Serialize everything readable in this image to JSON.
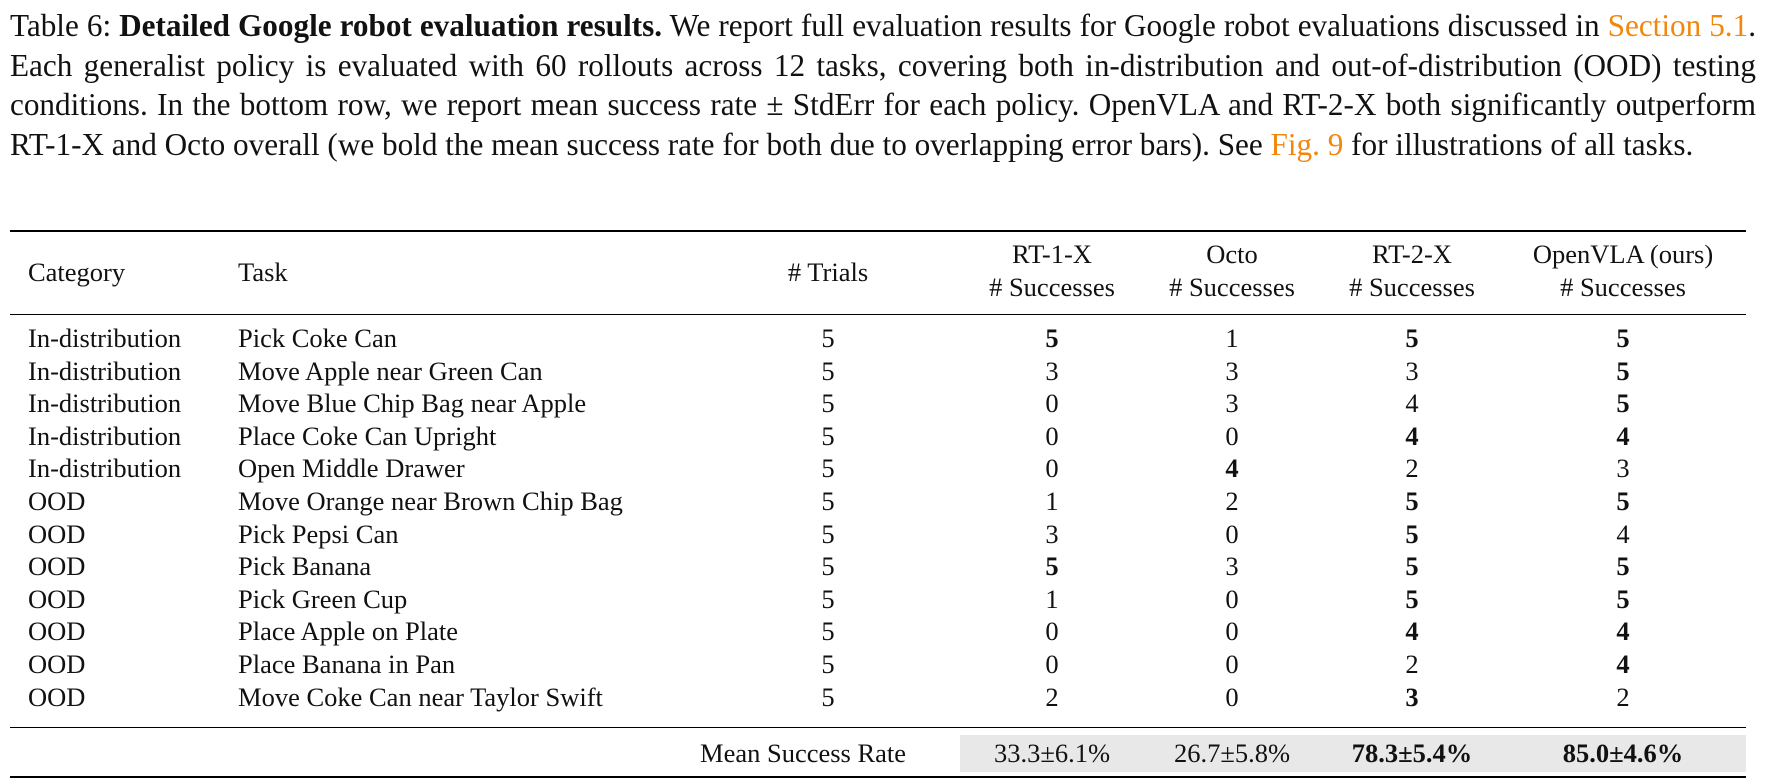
{
  "caption": {
    "label": "Table 6:",
    "title": "Detailed Google robot evaluation results.",
    "text_1": "We report full evaluation results for Google robot evaluations discussed in",
    "link_1": "Section 5.1",
    "text_2": ". Each generalist policy is evaluated with 60 rollouts across 12 tasks, covering both in-distribution and out-of-distribution (OOD) testing conditions. In the bottom row, we report mean success rate ± StdErr for each policy. OpenVLA and RT-2-X both significantly outperform RT-1-X and Octo overall (we bold the mean success rate for both due to overlapping error bars). See",
    "link_2": "Fig. 9",
    "text_3": "for illustrations of all tasks."
  },
  "colors": {
    "link": "#f2870e",
    "summary_shade": "#e8e8e8"
  },
  "table": {
    "headers": {
      "category": "Category",
      "task": "Task",
      "trials": "# Trials",
      "rt1x": [
        "RT-1-X",
        "# Successes"
      ],
      "octo": [
        "Octo",
        "# Successes"
      ],
      "rt2x": [
        "RT-2-X",
        "# Successes"
      ],
      "openvla": [
        "OpenVLA (ours)",
        "# Successes"
      ]
    },
    "rows": [
      {
        "category": "In-distribution",
        "task": "Pick Coke Can",
        "trials": "5",
        "rt1x": "5",
        "octo": "1",
        "rt2x": "5",
        "openvla": "5"
      },
      {
        "category": "In-distribution",
        "task": "Move Apple near Green Can",
        "trials": "5",
        "rt1x": "3",
        "octo": "3",
        "rt2x": "3",
        "openvla": "5"
      },
      {
        "category": "In-distribution",
        "task": "Move Blue Chip Bag near Apple",
        "trials": "5",
        "rt1x": "0",
        "octo": "3",
        "rt2x": "4",
        "openvla": "5"
      },
      {
        "category": "In-distribution",
        "task": "Place Coke Can Upright",
        "trials": "5",
        "rt1x": "0",
        "octo": "0",
        "rt2x": "4",
        "openvla": "4"
      },
      {
        "category": "In-distribution",
        "task": "Open Middle Drawer",
        "trials": "5",
        "rt1x": "0",
        "octo": "4",
        "rt2x": "2",
        "openvla": "3"
      },
      {
        "category": "OOD",
        "task": "Move Orange near Brown Chip Bag",
        "trials": "5",
        "rt1x": "1",
        "octo": "2",
        "rt2x": "5",
        "openvla": "5"
      },
      {
        "category": "OOD",
        "task": "Pick Pepsi Can",
        "trials": "5",
        "rt1x": "3",
        "octo": "0",
        "rt2x": "5",
        "openvla": "4"
      },
      {
        "category": "OOD",
        "task": "Pick Banana",
        "trials": "5",
        "rt1x": "5",
        "octo": "3",
        "rt2x": "5",
        "openvla": "5"
      },
      {
        "category": "OOD",
        "task": "Pick Green Cup",
        "trials": "5",
        "rt1x": "1",
        "octo": "0",
        "rt2x": "5",
        "openvla": "5"
      },
      {
        "category": "OOD",
        "task": "Place Apple on Plate",
        "trials": "5",
        "rt1x": "0",
        "octo": "0",
        "rt2x": "4",
        "openvla": "4"
      },
      {
        "category": "OOD",
        "task": "Place Banana in Pan",
        "trials": "5",
        "rt1x": "0",
        "octo": "0",
        "rt2x": "2",
        "openvla": "4"
      },
      {
        "category": "OOD",
        "task": "Move Coke Can near Taylor Swift",
        "trials": "5",
        "rt1x": "2",
        "octo": "0",
        "rt2x": "3",
        "openvla": "2"
      }
    ],
    "bold_cells": [
      [
        0,
        "rt1x"
      ],
      [
        0,
        "rt2x"
      ],
      [
        0,
        "openvla"
      ],
      [
        1,
        "openvla"
      ],
      [
        2,
        "openvla"
      ],
      [
        3,
        "rt2x"
      ],
      [
        3,
        "openvla"
      ],
      [
        4,
        "octo"
      ],
      [
        5,
        "rt2x"
      ],
      [
        5,
        "openvla"
      ],
      [
        6,
        "rt2x"
      ],
      [
        7,
        "rt1x"
      ],
      [
        7,
        "rt2x"
      ],
      [
        7,
        "openvla"
      ],
      [
        8,
        "rt2x"
      ],
      [
        8,
        "openvla"
      ],
      [
        9,
        "rt2x"
      ],
      [
        9,
        "openvla"
      ],
      [
        10,
        "openvla"
      ],
      [
        11,
        "rt2x"
      ]
    ],
    "summary": {
      "label": "Mean Success Rate",
      "rt1x": "33.3±6.1%",
      "octo": "26.7±5.8%",
      "rt2x": "78.3±5.4%",
      "openvla": "85.0±4.6%",
      "bold": [
        "rt2x",
        "openvla"
      ]
    }
  }
}
